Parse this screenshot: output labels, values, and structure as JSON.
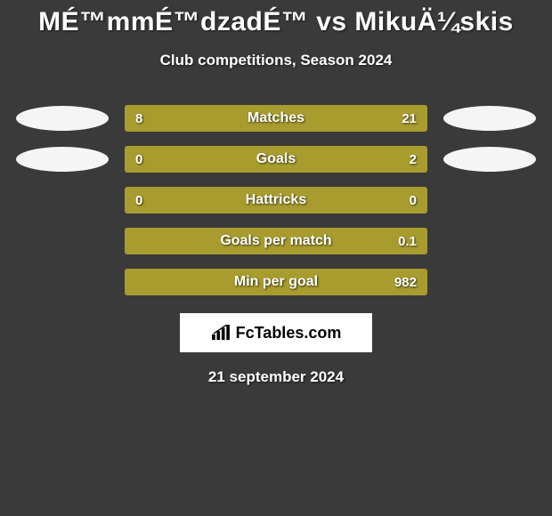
{
  "title": "MÉ™mmÉ™dzadÉ™ vs MikuÄ¼skis",
  "subtitle": "Club competitions, Season 2024",
  "colors": {
    "accent": "#a89c2f",
    "ellipse": "#f5f5f5",
    "background": "#3a3a3a",
    "text": "#ffffff"
  },
  "stats": [
    {
      "label": "Matches",
      "left_value": "8",
      "right_value": "21",
      "left_fill_pct": 27.6,
      "right_fill_pct": 72.4,
      "has_ellipses": true
    },
    {
      "label": "Goals",
      "left_value": "0",
      "right_value": "2",
      "left_fill_pct": 0,
      "right_fill_pct": 100,
      "has_ellipses": true
    },
    {
      "label": "Hattricks",
      "left_value": "0",
      "right_value": "0",
      "left_fill_pct": 100,
      "right_fill_pct": 0,
      "has_ellipses": false
    },
    {
      "label": "Goals per match",
      "left_value": "",
      "right_value": "0.1",
      "left_fill_pct": 0,
      "right_fill_pct": 100,
      "has_ellipses": false
    },
    {
      "label": "Min per goal",
      "left_value": "",
      "right_value": "982",
      "left_fill_pct": 0,
      "right_fill_pct": 100,
      "has_ellipses": false
    }
  ],
  "watermark": "FcTables.com",
  "date": "21 september 2024"
}
